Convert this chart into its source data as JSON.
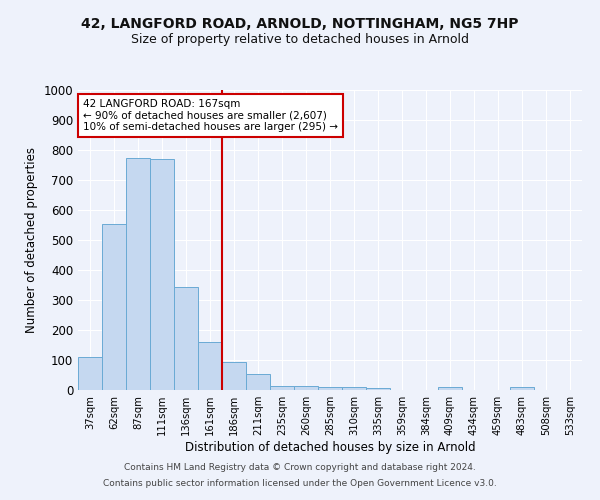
{
  "title": "42, LANGFORD ROAD, ARNOLD, NOTTINGHAM, NG5 7HP",
  "subtitle": "Size of property relative to detached houses in Arnold",
  "xlabel": "Distribution of detached houses by size in Arnold",
  "ylabel": "Number of detached properties",
  "bar_color": "#c5d8f0",
  "bar_edgecolor": "#6aaad4",
  "categories": [
    "37sqm",
    "62sqm",
    "87sqm",
    "111sqm",
    "136sqm",
    "161sqm",
    "186sqm",
    "211sqm",
    "235sqm",
    "260sqm",
    "285sqm",
    "310sqm",
    "335sqm",
    "359sqm",
    "384sqm",
    "409sqm",
    "434sqm",
    "459sqm",
    "483sqm",
    "508sqm",
    "533sqm"
  ],
  "values": [
    110,
    555,
    775,
    770,
    345,
    160,
    95,
    52,
    15,
    12,
    10,
    10,
    8,
    0,
    0,
    10,
    0,
    0,
    10,
    0,
    0
  ],
  "redline_x": 5.5,
  "redline_color": "#cc0000",
  "annotation_text_line1": "42 LANGFORD ROAD: 167sqm",
  "annotation_text_line2": "← 90% of detached houses are smaller (2,607)",
  "annotation_text_line3": "10% of semi-detached houses are larger (295) →",
  "annotation_box_facecolor": "#ffffff",
  "annotation_box_edgecolor": "#cc0000",
  "ylim": [
    0,
    1000
  ],
  "yticks": [
    0,
    100,
    200,
    300,
    400,
    500,
    600,
    700,
    800,
    900,
    1000
  ],
  "footer_line1": "Contains HM Land Registry data © Crown copyright and database right 2024.",
  "footer_line2": "Contains public sector information licensed under the Open Government Licence v3.0.",
  "bg_color": "#eef2fb",
  "grid_color": "#ffffff",
  "title_fontsize": 10,
  "subtitle_fontsize": 9
}
